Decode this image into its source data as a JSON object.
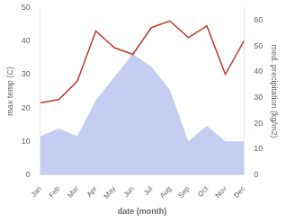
{
  "chart_data": {
    "type": "line",
    "xlabel": "date (month)",
    "ylabel": "max temp (C)",
    "y2label": "med. precipitation (kg/m2)",
    "categories": [
      "Jan",
      "Feb",
      "Mar",
      "Apr",
      "May",
      "Jun",
      "Jul",
      "Aug",
      "Sep",
      "Oct",
      "Nov",
      "Dec"
    ],
    "series": [
      {
        "type": "area",
        "axis": "y2",
        "color": "#c5cef0",
        "values": [
          15,
          18,
          15,
          29,
          38,
          47,
          42,
          33,
          13,
          19,
          13,
          13
        ]
      },
      {
        "type": "line",
        "color": "#c0392b",
        "values": [
          21.5,
          22.5,
          28.0,
          43.0,
          38.0,
          36.0,
          44.0,
          46.0,
          41.0,
          44.5,
          30.0,
          40.0
        ]
      }
    ],
    "ylim": [
      0,
      50
    ],
    "yticks": [
      0,
      10,
      20,
      30,
      40,
      50
    ],
    "y2lim": [
      0,
      65
    ],
    "y2ticks": [
      0,
      10,
      20,
      30,
      40,
      50,
      60
    ],
    "grid": false
  }
}
